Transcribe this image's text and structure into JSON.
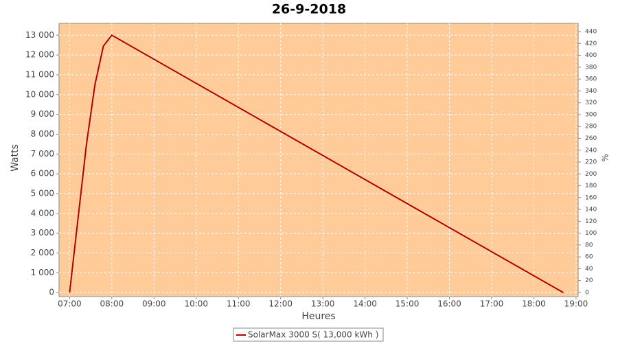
{
  "chart_data": {
    "type": "line",
    "title": "26-9-2018",
    "xlabel": "Heures",
    "ylabel": "Watts",
    "y2label": "%",
    "background": "#ffcc99",
    "grid": true,
    "xlim": [
      6.75,
      19.05
    ],
    "xticks": [
      {
        "value": 7,
        "label": "07:00"
      },
      {
        "value": 8,
        "label": "08:00"
      },
      {
        "value": 9,
        "label": "09:00"
      },
      {
        "value": 10,
        "label": "10:00"
      },
      {
        "value": 11,
        "label": "11:00"
      },
      {
        "value": 12,
        "label": "12:00"
      },
      {
        "value": 13,
        "label": "13:00"
      },
      {
        "value": 14,
        "label": "14:00"
      },
      {
        "value": 15,
        "label": "15:00"
      },
      {
        "value": 16,
        "label": "16:00"
      },
      {
        "value": 17,
        "label": "17:00"
      },
      {
        "value": 18,
        "label": "18:00"
      },
      {
        "value": 19,
        "label": "19:00"
      }
    ],
    "ylim": [
      -200,
      13600
    ],
    "yticks": [
      0,
      {
        "value": 1000,
        "label": "1 000"
      },
      {
        "value": 2000,
        "label": "2 000"
      },
      {
        "value": 3000,
        "label": "3 000"
      },
      {
        "value": 4000,
        "label": "4 000"
      },
      {
        "value": 5000,
        "label": "5 000"
      },
      {
        "value": 6000,
        "label": "6 000"
      },
      {
        "value": 7000,
        "label": "7 000"
      },
      {
        "value": 8000,
        "label": "8 000"
      },
      {
        "value": 9000,
        "label": "9 000"
      },
      {
        "value": 10000,
        "label": "10 000"
      },
      {
        "value": 11000,
        "label": "11 000"
      },
      {
        "value": 12000,
        "label": "12 000"
      },
      {
        "value": 13000,
        "label": "13 000"
      }
    ],
    "y2lim": [
      -7,
      454
    ],
    "y2ticks": [
      0,
      20,
      40,
      60,
      80,
      100,
      120,
      140,
      160,
      180,
      200,
      220,
      240,
      260,
      280,
      300,
      320,
      340,
      360,
      380,
      400,
      420,
      440
    ],
    "series": [
      {
        "name": "SolarMax 3000 S( 13,000 kWh )",
        "color": "#b00000",
        "x": [
          7.0,
          7.4,
          7.6,
          7.8,
          8.0,
          18.7
        ],
        "values": [
          0,
          7500,
          10500,
          12450,
          13000,
          0
        ]
      }
    ]
  }
}
